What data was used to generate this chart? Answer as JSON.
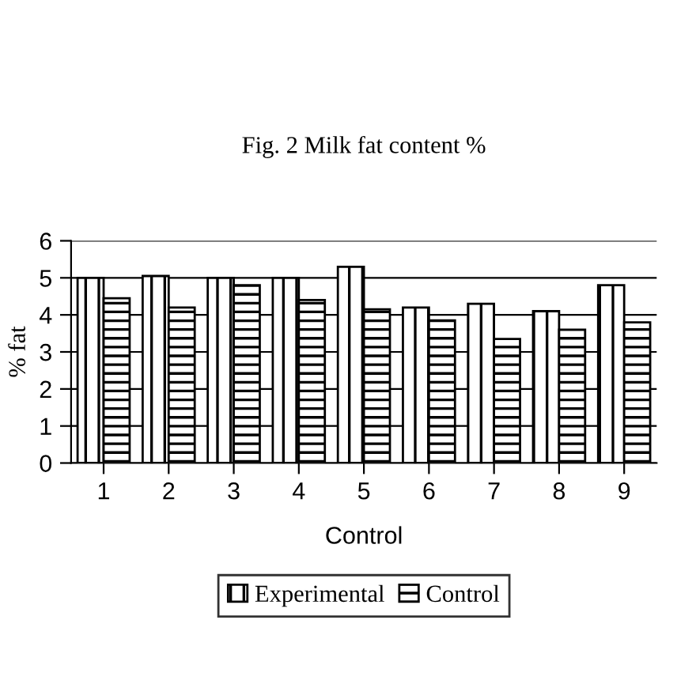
{
  "chart_data": {
    "type": "bar",
    "title": "Fig. 2 Milk fat content %",
    "xlabel": "Control",
    "ylabel": "% fat",
    "categories": [
      "1",
      "2",
      "3",
      "4",
      "5",
      "6",
      "7",
      "8",
      "9"
    ],
    "series": [
      {
        "name": "Experimental",
        "color": "#000000",
        "values": [
          5.0,
          5.05,
          5.0,
          5.0,
          5.3,
          4.2,
          4.3,
          4.1,
          4.8
        ]
      },
      {
        "name": "Control",
        "color": "#000000",
        "values": [
          4.45,
          4.2,
          4.8,
          4.4,
          4.15,
          3.85,
          3.35,
          3.6,
          3.8
        ]
      }
    ],
    "ylim": [
      0,
      6
    ],
    "yticks": [
      0,
      1,
      2,
      3,
      4,
      5,
      6
    ],
    "grid": "y",
    "legend": "bottom"
  }
}
